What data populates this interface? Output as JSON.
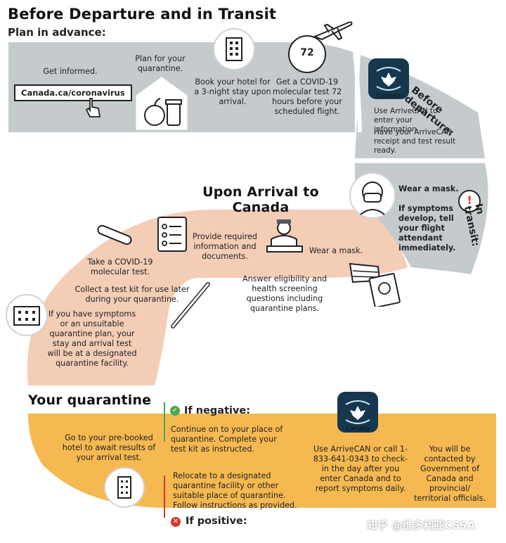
{
  "title": "Before Departure and in Transit",
  "plan_in_advance": "Plan in advance:",
  "get_informed": "Get informed.",
  "website": "Canada.ca/coronavirus",
  "plan_quarantine": "Plan for your quarantine.",
  "book_hotel": "Book your hotel for a 3-night stay upon arrival.",
  "covid_test_72": "Get a COVID-19 molecular test 72 hours before your scheduled flight.",
  "badge_72": "72",
  "before_departure_label": "Before departure:",
  "arrivecan_label": "Canada",
  "use_arrivecan": "Use ArriveCAN to enter your information.",
  "have_receipt": "Have your ArriveCAN receipt and test result ready.",
  "in_transit_label": "In transit:",
  "wear_mask_transit": "Wear a mask.",
  "symptoms_transit": "If symptoms develop, tell your flight attendant immediately.",
  "upon_arrival_title": "Upon Arrival to Canada",
  "provide_docs": "Provide required information and documents.",
  "wear_mask_arrival": "Wear a mask.",
  "answer_eligibility": "Answer eligibility and health screening questions including quarantine plans.",
  "take_test": "Take a COVID-19 molecular test.",
  "collect_kit": "Collect a test kit for use later during your quarantine.",
  "if_symptoms": "If you have symptoms or an unsuitable quarantine plan, your stay and arrival test will be at a designated quarantine facility.",
  "your_quarantine_title": "Your quarantine",
  "go_to_hotel": "Go to your pre-booked hotel to await results of your arrival test.",
  "if_negative": "If negative:",
  "negative_text": "Continue on to your place of quarantine. Complete your test kit as instructed.",
  "positive_text": "Relocate to a designated quarantine facility or other suitable place of quarantine. Follow instructions as provided.",
  "if_positive": "If positive:",
  "arrivecan_call": "Use ArriveCAN or call 1-833-641-0343 to check-in the day after you enter Canada and to report symptoms daily.",
  "contacted": "You will be contacted by Government of Canada and provincial/ territorial officials.",
  "watermark": "知乎 @维多利亚CSSA",
  "colors": {
    "grey_band": "#c5cbcd",
    "peach_band": "#f4cdb6",
    "orange_band": "#f6b951",
    "green": "#4ca64c",
    "red": "#d9362b",
    "app_blue": "#16384f"
  }
}
